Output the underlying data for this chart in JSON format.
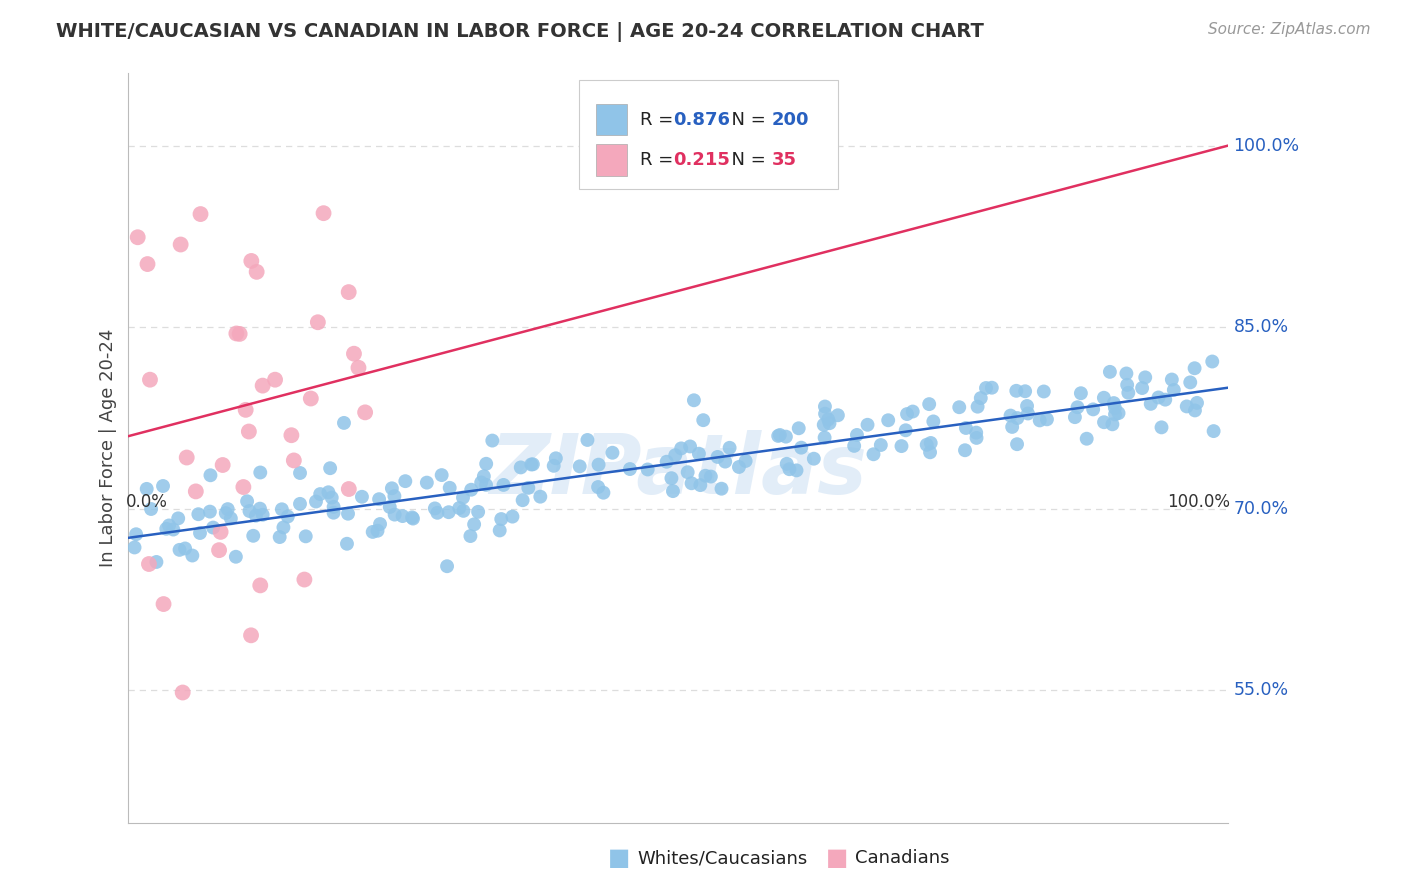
{
  "title": "WHITE/CAUCASIAN VS CANADIAN IN LABOR FORCE | AGE 20-24 CORRELATION CHART",
  "source": "Source: ZipAtlas.com",
  "ylabel": "In Labor Force | Age 20-24",
  "xlim": [
    0.0,
    1.0
  ],
  "ylim": [
    0.44,
    1.06
  ],
  "blue_color": "#90c4e8",
  "pink_color": "#f4a8bc",
  "blue_line_color": "#2860c0",
  "pink_line_color": "#e03060",
  "blue_R": 0.876,
  "blue_N": 200,
  "pink_R": 0.215,
  "pink_N": 35,
  "ytick_vals": [
    0.55,
    0.7,
    0.85,
    1.0
  ],
  "ytick_labels": [
    "55.0%",
    "70.0%",
    "85.0%",
    "100.0%"
  ],
  "xtick_labels": [
    "0.0%",
    "100.0%"
  ],
  "legend_label_blue": "Whites/Caucasians",
  "legend_label_pink": "Canadians",
  "watermark": "ZIPatlas",
  "background_color": "#ffffff",
  "grid_color": "#dddddd",
  "title_color": "#333333",
  "source_color": "#999999",
  "axis_label_color": "#444444",
  "right_label_color": "#2860c0",
  "blue_line_x0": 0.0,
  "blue_line_y0": 0.676,
  "blue_line_x1": 1.0,
  "blue_line_y1": 0.8,
  "pink_line_x0": 0.0,
  "pink_line_y0": 0.76,
  "pink_line_x1": 1.0,
  "pink_line_y1": 1.0
}
